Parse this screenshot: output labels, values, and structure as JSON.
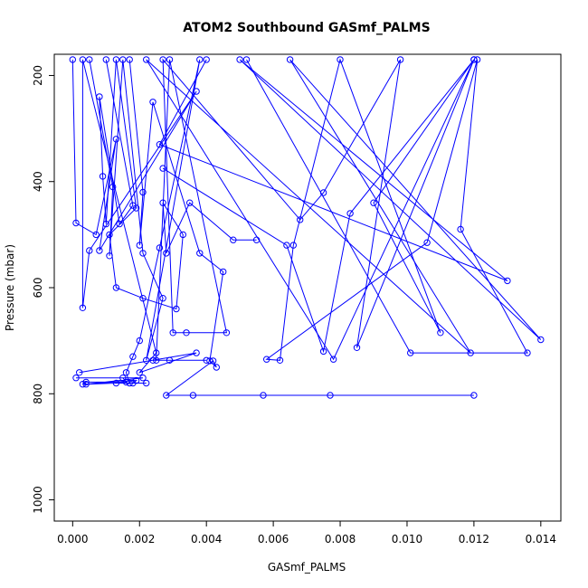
{
  "chart_data": {
    "type": "scatter",
    "title": "ATOM2 Southbound GASmf_PALMS",
    "xlabel": "GASmf_PALMS",
    "ylabel": "Pressure (mbar)",
    "xlim": [
      -0.00055,
      0.0146
    ],
    "ylim": [
      1040,
      160
    ],
    "y_reversed": true,
    "xticks": [
      "0.000",
      "0.002",
      "0.004",
      "0.006",
      "0.008",
      "0.010",
      "0.012",
      "0.014"
    ],
    "xtick_values": [
      0.0,
      0.002,
      0.004,
      0.006,
      0.008,
      0.01,
      0.012,
      0.014
    ],
    "yticks": [
      "200",
      "400",
      "600",
      "800",
      "1000"
    ],
    "ytick_values": [
      200,
      400,
      600,
      800,
      1000
    ],
    "color": "#0000ff",
    "marker": "open-circle",
    "series": [
      {
        "x": [
          0.004,
          0.0026,
          0.013,
          0.005,
          0.014,
          0.0065,
          0.0119,
          0.0022,
          0.0078,
          0.012,
          0.0085,
          0.0098,
          0.0075,
          0.0068,
          0.0027,
          0.003,
          0.0034,
          0.0046,
          0.0029,
          0.0025,
          0.0024,
          0.0029,
          0.004
        ],
        "y": [
          170,
          330,
          587,
          170,
          698,
          170,
          723,
          170,
          735,
          170,
          713,
          170,
          421,
          472,
          170,
          685,
          685,
          685,
          170,
          737,
          737,
          737,
          737
        ]
      },
      {
        "x": [
          0.0,
          0.0001,
          0.0007,
          0.0013,
          0.0008,
          0.0037,
          0.0005,
          0.0003,
          0.0003,
          0.0025,
          0.002,
          0.0037,
          0.0002
        ],
        "y": [
          170,
          478,
          500,
          320,
          530,
          230,
          530,
          638,
          170,
          723,
          760,
          723,
          760
        ]
      },
      {
        "x": [
          0.0005,
          0.0012,
          0.0011,
          0.0015,
          0.0021,
          0.0027,
          0.0022,
          0.0038,
          0.0026,
          0.002,
          0.0018,
          0.0016,
          0.0017,
          0.0022
        ],
        "y": [
          170,
          410,
          540,
          170,
          535,
          620,
          737,
          170,
          525,
          700,
          730,
          760,
          780,
          780
        ]
      },
      {
        "x": [
          0.0017,
          0.0021,
          0.002,
          0.0024,
          0.0038,
          0.0045,
          0.0041,
          0.0043,
          0.0042,
          0.0028,
          0.0036,
          0.0057,
          0.0077,
          0.012
        ],
        "y": [
          170,
          420,
          520,
          250,
          535,
          570,
          738,
          750,
          738,
          803,
          803,
          803,
          803,
          803
        ]
      },
      {
        "x": [
          0.0001,
          0.0021,
          0.0004,
          0.0013,
          0.0018,
          0.0019,
          0.0003,
          0.0004,
          0.0016,
          0.0015
        ],
        "y": [
          770,
          770,
          782,
          780,
          780,
          775,
          782,
          778,
          778,
          770
        ]
      },
      {
        "x": [
          0.001,
          0.0018,
          0.0014,
          0.0008,
          0.0009,
          0.001,
          0.0013,
          0.0019,
          0.0011,
          0.0013,
          0.0021,
          0.0031,
          0.0033,
          0.0027,
          0.0028,
          0.0035,
          0.0048,
          0.0055
        ],
        "y": [
          170,
          445,
          480,
          240,
          390,
          480,
          170,
          450,
          500,
          600,
          620,
          640,
          500,
          440,
          535,
          440,
          510,
          510
        ]
      },
      {
        "x": [
          0.0027,
          0.0064,
          0.0075,
          0.0083,
          0.012,
          0.009,
          0.011,
          0.008,
          0.0066,
          0.0062,
          0.0058,
          0.0106,
          0.0121,
          0.0116,
          0.0136,
          0.0101,
          0.0052
        ],
        "y": [
          375,
          520,
          720,
          460,
          170,
          440,
          685,
          170,
          520,
          737,
          735,
          515,
          170,
          490,
          723,
          723,
          170
        ]
      }
    ]
  }
}
